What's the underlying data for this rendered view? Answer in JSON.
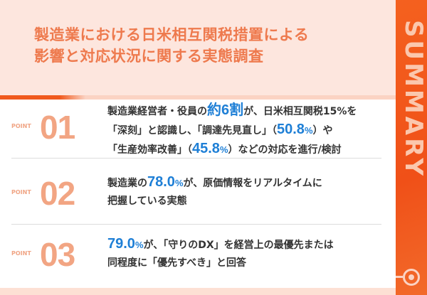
{
  "title": {
    "line1": "製造業における日米相互関税措置による",
    "line2": "影響と対応状況に関する実態調査"
  },
  "side_label": "SUMMARY",
  "colors": {
    "accent": "#f05a1e",
    "title": "#ee7a4e",
    "highlight": "#1e7fd6",
    "header_bg": "#fde6de"
  },
  "points": [
    {
      "label": "POINT",
      "number": "01",
      "lines": [
        [
          "製造業経営者・役員の",
          "約6割",
          "",
          "が、日米相互関税15%を"
        ],
        [
          "「深刻」と認識し、「調達先見直し」（",
          "50.8",
          "%",
          "）や"
        ],
        [
          "「生産効率改善」（",
          "45.8",
          "%",
          "）などの対応を進行/検討"
        ]
      ]
    },
    {
      "label": "POINT",
      "number": "02",
      "lines": [
        [
          "製造業の",
          "78.0",
          "%",
          "が、原価情報をリアルタイムに"
        ],
        [
          "把握している実態"
        ]
      ]
    },
    {
      "label": "POINT",
      "number": "03",
      "lines": [
        [
          "",
          "79.0",
          "%",
          "が、「守りのDX」を経営上の最優先または"
        ],
        [
          "同程度に「優先すべき」と回答"
        ]
      ]
    }
  ]
}
